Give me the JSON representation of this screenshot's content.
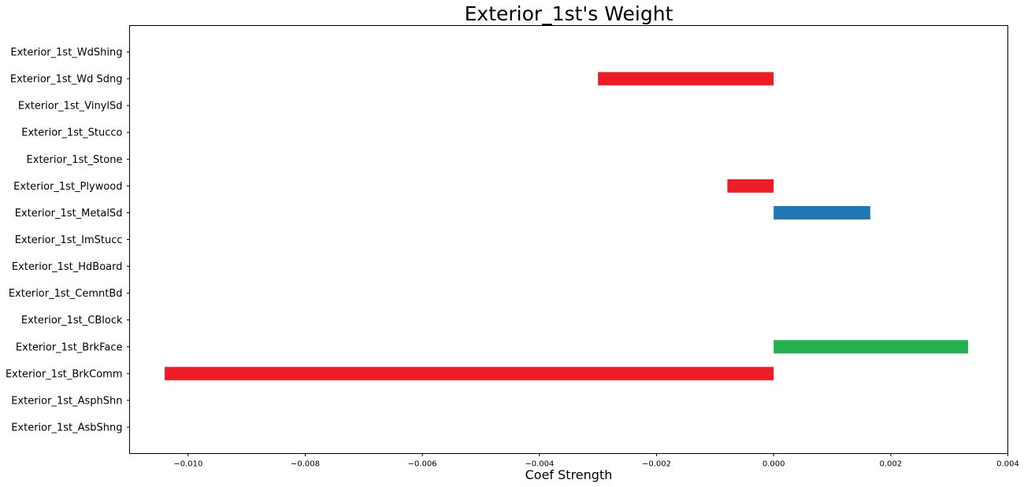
{
  "chart_data": {
    "type": "bar",
    "orientation": "horizontal",
    "title": "Exterior_1st's Weight",
    "xlabel": "Coef Strength",
    "ylabel": "",
    "xlim": [
      -0.011,
      0.004
    ],
    "xticks": [
      -0.01,
      -0.008,
      -0.006,
      -0.004,
      -0.002,
      0.0,
      0.002,
      0.004
    ],
    "xtick_labels": [
      "−0.010",
      "−0.008",
      "−0.006",
      "−0.004",
      "−0.002",
      "0.000",
      "0.002",
      "0.004"
    ],
    "grid": false,
    "categories": [
      "Exterior_1st_AsbShng",
      "Exterior_1st_AsphShn",
      "Exterior_1st_BrkComm",
      "Exterior_1st_BrkFace",
      "Exterior_1st_CBlock",
      "Exterior_1st_CemntBd",
      "Exterior_1st_HdBoard",
      "Exterior_1st_ImStucc",
      "Exterior_1st_MetalSd",
      "Exterior_1st_Plywood",
      "Exterior_1st_Stone",
      "Exterior_1st_Stucco",
      "Exterior_1st_VinylSd",
      "Exterior_1st_Wd Sdng",
      "Exterior_1st_WdShing"
    ],
    "values": [
      0,
      0,
      -0.0104,
      0.00332,
      0,
      0,
      0,
      0,
      0.00165,
      -0.00079,
      0,
      0,
      0,
      -0.003,
      0
    ],
    "bar_colors": [
      "#ee1c25",
      "#ee1c25",
      "#ee1c25",
      "#22b14c",
      "#ee1c25",
      "#ee1c25",
      "#ee1c25",
      "#ee1c25",
      "#1f77b4",
      "#ee1c25",
      "#ee1c25",
      "#ee1c25",
      "#ee1c25",
      "#ee1c25",
      "#ee1c25"
    ]
  }
}
